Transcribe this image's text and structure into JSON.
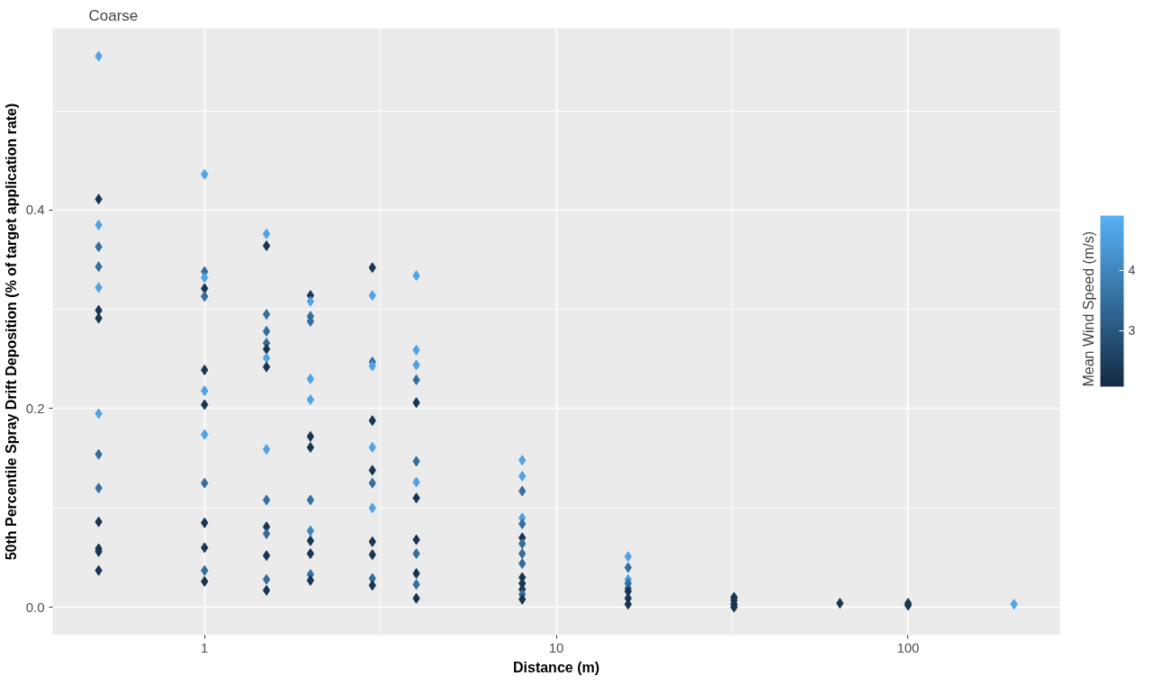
{
  "chart_data": {
    "type": "scatter",
    "title": "Coarse",
    "xlabel": "Distance (m)",
    "ylabel": "50th Percentile Spray Drift Deposition (% of target application rate)",
    "clabel": "Mean Wind Speed (m/s)",
    "log": "x",
    "grid": true,
    "marker": "diamond",
    "xlim": [
      0.37,
      270
    ],
    "xticks": [
      1,
      10,
      100
    ],
    "ylim": [
      -0.028,
      0.583
    ],
    "yticks": [
      {
        "value": 0,
        "label": "0.0"
      },
      {
        "value": 0.2,
        "label": "0.2"
      },
      {
        "value": 0.4,
        "label": "0.4"
      }
    ],
    "clim": [
      2.07,
      4.91
    ],
    "cticks": [
      3,
      4
    ],
    "series": [
      {
        "x": [
          0.5,
          0.5,
          0.5,
          0.5,
          0.5,
          0.5,
          0.5,
          0.5,
          0.5,
          0.5,
          0.5,
          0.5,
          0.5,
          0.5,
          0.5,
          1,
          1,
          1,
          1,
          1,
          1,
          1,
          1,
          1,
          1,
          1,
          1,
          1,
          1,
          1.5,
          1.5,
          1.5,
          1.5,
          1.5,
          1.5,
          1.5,
          1.5,
          1.5,
          1.5,
          1.5,
          1.5,
          1.5,
          1.5,
          1.5,
          2,
          2,
          2,
          2,
          2,
          2,
          2,
          2,
          2,
          2,
          2,
          2,
          2,
          2,
          3,
          3,
          3,
          3,
          3,
          3,
          3,
          3,
          3,
          3,
          3,
          3,
          3,
          4,
          4,
          4,
          4,
          4,
          4,
          4,
          4,
          4,
          4,
          4,
          4,
          4,
          8,
          8,
          8,
          8,
          8,
          8,
          8,
          8,
          8,
          8,
          8,
          8,
          8,
          8,
          16,
          16,
          16,
          16,
          16,
          16,
          16,
          16,
          32,
          32,
          32,
          32,
          64,
          100,
          100,
          200
        ],
        "values": [
          0.555,
          0.411,
          0.385,
          0.363,
          0.343,
          0.322,
          0.299,
          0.291,
          0.195,
          0.154,
          0.12,
          0.086,
          0.059,
          0.056,
          0.037,
          0.436,
          0.338,
          0.332,
          0.321,
          0.313,
          0.239,
          0.218,
          0.204,
          0.174,
          0.125,
          0.085,
          0.06,
          0.037,
          0.026,
          0.376,
          0.364,
          0.295,
          0.278,
          0.266,
          0.26,
          0.251,
          0.242,
          0.159,
          0.108,
          0.081,
          0.074,
          0.052,
          0.028,
          0.017,
          0.314,
          0.308,
          0.293,
          0.288,
          0.23,
          0.209,
          0.172,
          0.161,
          0.108,
          0.077,
          0.067,
          0.054,
          0.033,
          0.027,
          0.342,
          0.314,
          0.247,
          0.243,
          0.188,
          0.161,
          0.138,
          0.125,
          0.1,
          0.066,
          0.053,
          0.029,
          0.022,
          0.334,
          0.259,
          0.244,
          0.229,
          0.206,
          0.147,
          0.126,
          0.11,
          0.068,
          0.054,
          0.034,
          0.023,
          0.009,
          0.148,
          0.132,
          0.117,
          0.09,
          0.084,
          0.07,
          0.064,
          0.054,
          0.044,
          0.03,
          0.024,
          0.018,
          0.013,
          0.008,
          0.051,
          0.04,
          0.028,
          0.024,
          0.019,
          0.016,
          0.009,
          0.003,
          0.01,
          0.007,
          0.003,
          0.0,
          0.004,
          0.004,
          0.002,
          0.003
        ],
        "cvalues": [
          4.6,
          2.3,
          4.6,
          3.5,
          3.5,
          4.6,
          2.3,
          2.3,
          4.6,
          3.5,
          3.5,
          2.3,
          2.3,
          2.3,
          2.3,
          4.6,
          3.5,
          4.6,
          2.3,
          3.5,
          2.3,
          4.6,
          2.3,
          4.6,
          3.5,
          2.3,
          2.3,
          3.5,
          2.3,
          4.6,
          2.3,
          3.5,
          3.5,
          3.5,
          2.3,
          4.6,
          2.3,
          4.6,
          3.5,
          2.3,
          3.5,
          2.3,
          3.5,
          2.3,
          2.3,
          4.6,
          3.5,
          3.5,
          4.6,
          4.6,
          2.3,
          2.3,
          3.5,
          4.0,
          2.3,
          2.3,
          3.5,
          2.3,
          2.3,
          4.6,
          3.5,
          4.6,
          2.3,
          4.6,
          2.3,
          3.5,
          4.6,
          2.3,
          2.3,
          3.5,
          2.3,
          4.6,
          4.6,
          4.6,
          3.5,
          2.3,
          3.5,
          4.6,
          2.3,
          2.3,
          3.5,
          2.3,
          3.5,
          2.3,
          4.6,
          4.6,
          3.5,
          4.6,
          3.5,
          2.3,
          3.5,
          3.5,
          3.5,
          2.3,
          2.3,
          2.3,
          3.5,
          2.3,
          4.6,
          3.5,
          4.6,
          3.5,
          3.5,
          2.3,
          2.3,
          2.3,
          2.3,
          2.3,
          2.3,
          2.3,
          2.3,
          2.3,
          2.3,
          4.6
        ]
      }
    ]
  }
}
